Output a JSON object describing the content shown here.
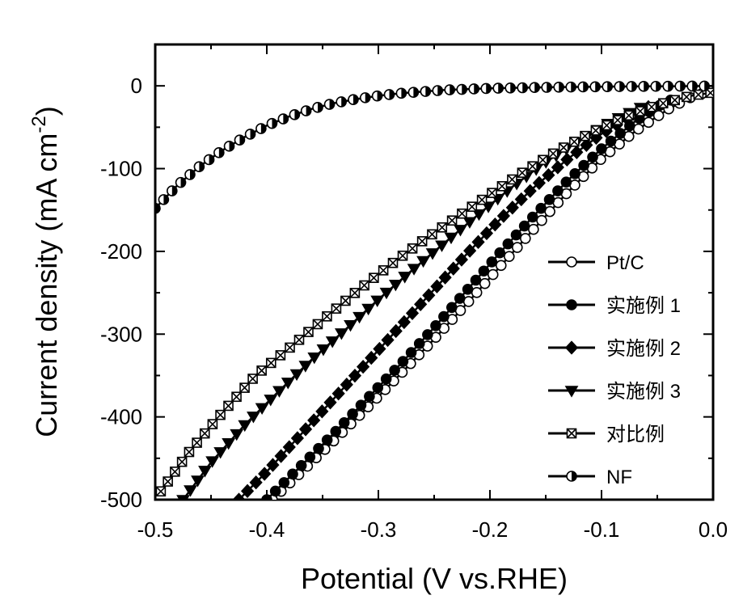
{
  "chart_data": {
    "type": "line",
    "xlabel": "Potential (V vs.RHE)",
    "ylabel_main": "Current density (mA cm",
    "ylabel_sup": "-2",
    "ylabel_close": ")",
    "xlim": [
      -0.5,
      0.0
    ],
    "ylim": [
      -500,
      50
    ],
    "xticks": [
      -0.5,
      -0.4,
      -0.3,
      -0.2,
      -0.1,
      0.0
    ],
    "xtick_labels": [
      "-0.5",
      "-0.4",
      "-0.3",
      "-0.2",
      "-0.1",
      "0.0"
    ],
    "yticks": [
      -500,
      -400,
      -300,
      -200,
      -100,
      0
    ],
    "ytick_labels": [
      "-500",
      "-400",
      "-300",
      "-200",
      "-100",
      "0"
    ],
    "grid": false,
    "legend_position": "right",
    "series": [
      {
        "name": "Pt/C",
        "marker": "open-circle",
        "x": [
          -0.395,
          -0.37,
          -0.34,
          -0.31,
          -0.28,
          -0.25,
          -0.22,
          -0.19,
          -0.16,
          -0.13,
          -0.1,
          -0.07,
          -0.04,
          -0.02,
          0.0
        ],
        "y": [
          -500,
          -468,
          -429,
          -389,
          -348,
          -306,
          -262,
          -217,
          -172,
          -128,
          -88,
          -55,
          -28,
          -14,
          -5
        ]
      },
      {
        "name": "实施例 1",
        "marker": "filled-circle",
        "x": [
          -0.4,
          -0.37,
          -0.34,
          -0.31,
          -0.28,
          -0.25,
          -0.22,
          -0.19,
          -0.16,
          -0.13,
          -0.1,
          -0.07,
          -0.05,
          -0.03
        ],
        "y": [
          -500,
          -460,
          -420,
          -378,
          -336,
          -292,
          -246,
          -200,
          -156,
          -114,
          -76,
          -43,
          -25,
          -12
        ]
      },
      {
        "name": "实施例 2",
        "marker": "filled-diamond",
        "x": [
          -0.425,
          -0.4,
          -0.37,
          -0.34,
          -0.31,
          -0.28,
          -0.25,
          -0.22,
          -0.19,
          -0.16,
          -0.13,
          -0.1,
          -0.07,
          -0.05
        ],
        "y": [
          -500,
          -466,
          -422,
          -378,
          -334,
          -290,
          -246,
          -202,
          -160,
          -122,
          -88,
          -58,
          -34,
          -20
        ]
      },
      {
        "name": "实施例 3",
        "marker": "filled-triangle-down",
        "x": [
          -0.475,
          -0.45,
          -0.42,
          -0.39,
          -0.36,
          -0.33,
          -0.3,
          -0.27,
          -0.24,
          -0.21,
          -0.18,
          -0.15,
          -0.12,
          -0.09,
          -0.06
        ],
        "y": [
          -500,
          -455,
          -410,
          -370,
          -331,
          -295,
          -258,
          -223,
          -189,
          -155,
          -122,
          -92,
          -66,
          -42,
          -23
        ]
      },
      {
        "name": "对比例",
        "marker": "crossed-square",
        "x": [
          -0.495,
          -0.47,
          -0.44,
          -0.41,
          -0.38,
          -0.35,
          -0.32,
          -0.29,
          -0.26,
          -0.23,
          -0.2,
          -0.17,
          -0.14,
          -0.11,
          -0.08,
          -0.05,
          -0.02,
          0.0
        ],
        "y": [
          -490,
          -443,
          -395,
          -350,
          -317,
          -283,
          -249,
          -217,
          -187,
          -159,
          -131,
          -104,
          -79,
          -57,
          -38,
          -23,
          -12,
          -8
        ]
      },
      {
        "name": "NF",
        "marker": "half-filled-circle",
        "x": [
          -0.5,
          -0.48,
          -0.46,
          -0.44,
          -0.42,
          -0.4,
          -0.38,
          -0.36,
          -0.34,
          -0.32,
          -0.3,
          -0.28,
          -0.26,
          -0.24,
          -0.22,
          -0.2,
          -0.18,
          -0.16,
          -0.14,
          -0.12,
          -0.1,
          -0.08,
          -0.06,
          -0.04,
          -0.02,
          0.0
        ],
        "y": [
          -148,
          -120,
          -97,
          -78,
          -62,
          -48,
          -37,
          -28,
          -21,
          -16,
          -12,
          -9,
          -7,
          -5,
          -4,
          -3,
          -2.5,
          -2,
          -1.6,
          -1.3,
          -1,
          -0.8,
          -0.6,
          -0.5,
          -0.3,
          -0.2
        ]
      }
    ]
  }
}
